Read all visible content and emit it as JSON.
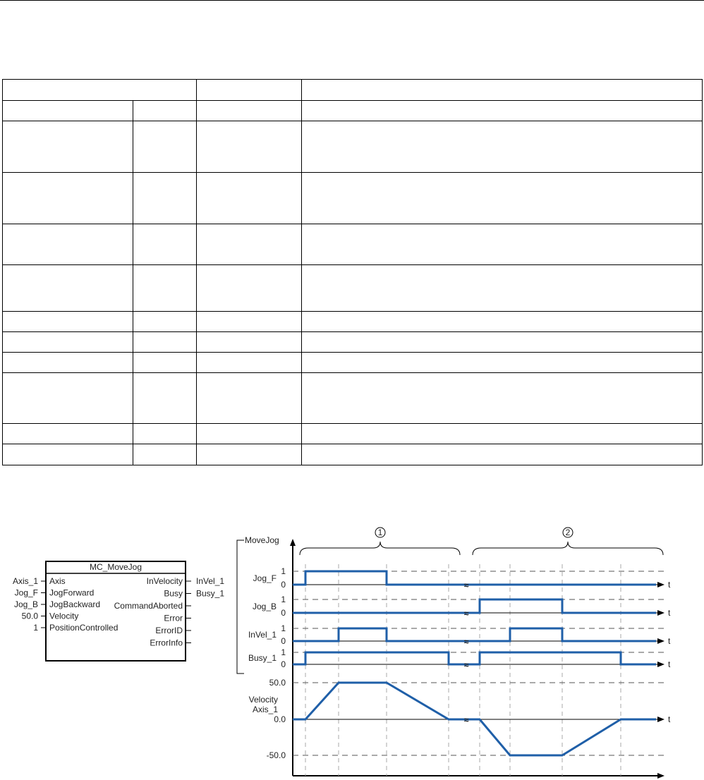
{
  "table": {
    "row_heights": null,
    "rows": 12
  },
  "block": {
    "title": "MC_MoveJog",
    "inputs": [
      {
        "pin": "Axis",
        "signal": "Axis_1"
      },
      {
        "pin": "JogForward",
        "signal": "Jog_F"
      },
      {
        "pin": "JogBackward",
        "signal": "Jog_B"
      },
      {
        "pin": "Velocity",
        "signal": "50.0"
      },
      {
        "pin": "PositionControlled",
        "signal": "1"
      }
    ],
    "outputs": [
      {
        "pin": "InVelocity",
        "signal": "InVel_1"
      },
      {
        "pin": "Busy",
        "signal": "Busy_1"
      },
      {
        "pin": "CommandAborted",
        "signal": ""
      },
      {
        "pin": "Error",
        "signal": ""
      },
      {
        "pin": "ErrorID",
        "signal": ""
      },
      {
        "pin": "ErrorInfo",
        "signal": ""
      }
    ]
  },
  "timing": {
    "group_label": "MoveJog",
    "phase_markers": [
      "1",
      "2"
    ],
    "time_label": "t",
    "level_high": "1",
    "level_low": "0",
    "signals": [
      "Jog_F",
      "Jog_B",
      "InVel_1",
      "Busy_1"
    ],
    "velocity_label": "Velocity Axis_1",
    "velocity_label_lines": [
      "Velocity",
      "Axis_1"
    ],
    "velocity_ticks": [
      "50.0",
      "0.0",
      "-50.0"
    ],
    "signal_color": "#1f5fa8"
  }
}
